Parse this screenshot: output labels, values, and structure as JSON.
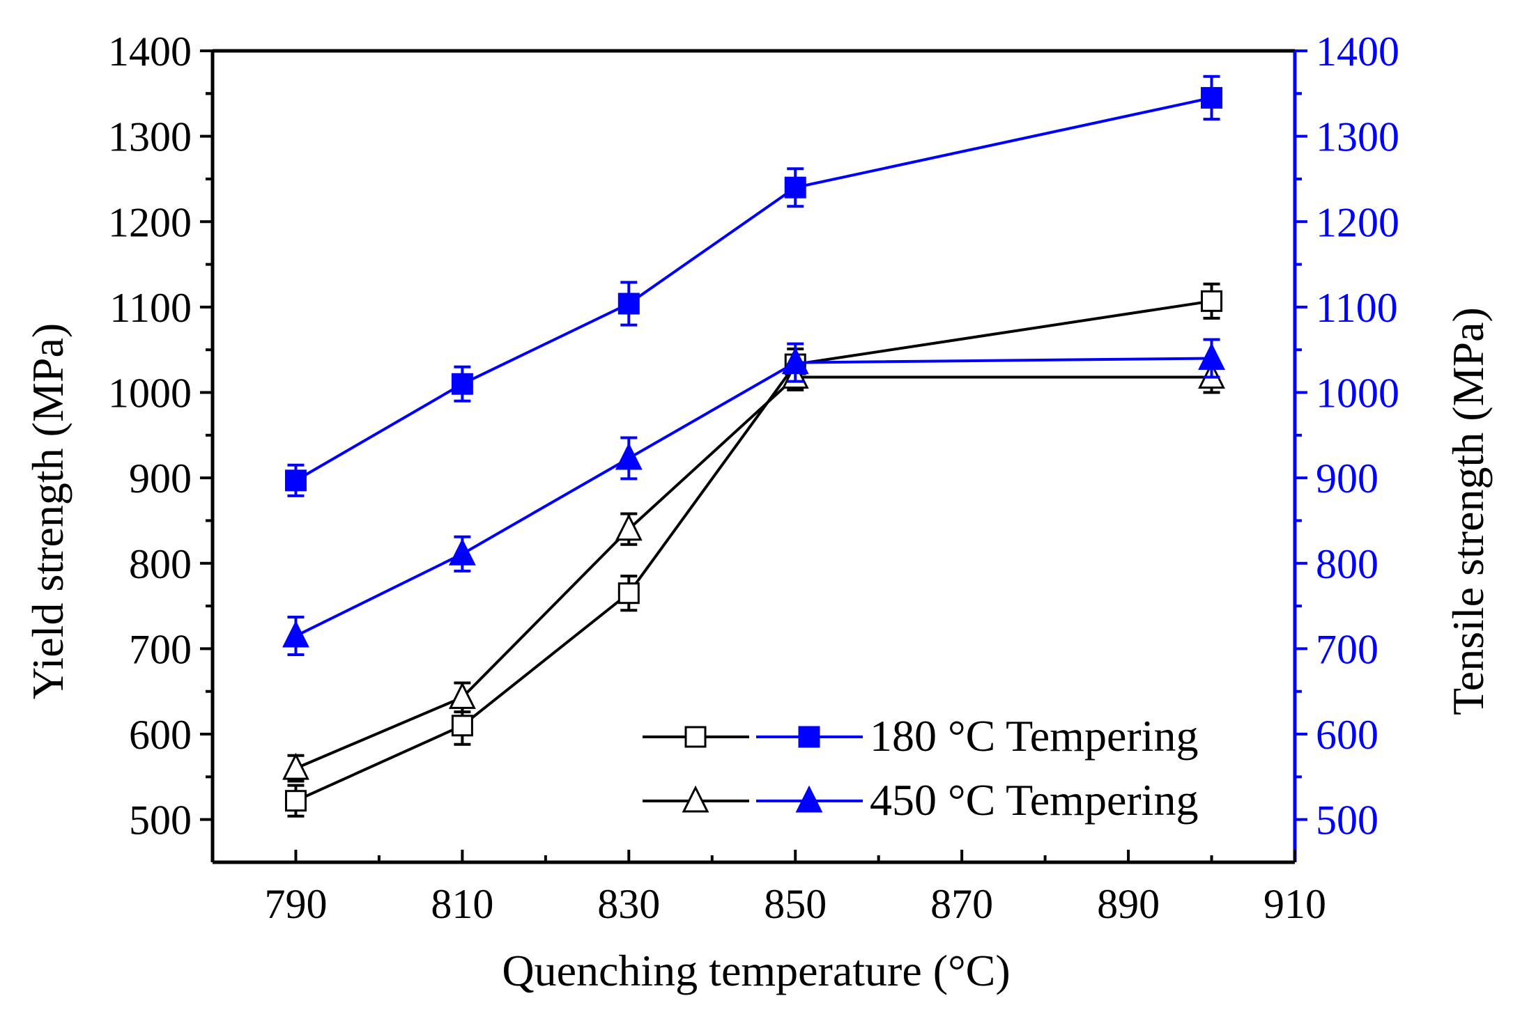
{
  "chart_data": {
    "type": "line",
    "title": "",
    "xlabel": "Quenching temperature (°C)",
    "ylabel_left": "Yield strength (MPa)",
    "ylabel_right": "Tensile strength (MPa)",
    "xlim": [
      780,
      910
    ],
    "ylim": [
      450,
      1400
    ],
    "x_ticks": [
      790,
      810,
      830,
      850,
      870,
      890,
      910
    ],
    "x_tick_labels": [
      "790",
      "810",
      "830",
      "850",
      "870",
      "890",
      "910"
    ],
    "y_ticks": [
      500,
      600,
      700,
      800,
      900,
      1000,
      1100,
      1200,
      1300,
      1400
    ],
    "y_tick_labels": [
      "500",
      "600",
      "700",
      "800",
      "900",
      "1000",
      "1100",
      "1200",
      "1300",
      "1400"
    ],
    "x": [
      790,
      810,
      830,
      850,
      900
    ],
    "series": [
      {
        "name": "Yield strength, 180 °C Tempering",
        "axis": "left",
        "color": "#000000",
        "marker": "square-open",
        "values": [
          522,
          610,
          765,
          1033,
          1107
        ],
        "errors": [
          18,
          22,
          20,
          18,
          20
        ]
      },
      {
        "name": "Yield strength, 450 °C Tempering",
        "axis": "left",
        "color": "#000000",
        "marker": "triangle-open",
        "values": [
          560,
          643,
          840,
          1018,
          1018
        ],
        "errors": [
          15,
          17,
          18,
          15,
          18
        ]
      },
      {
        "name": "Tensile strength, 180 °C Tempering",
        "axis": "right",
        "color": "#0000ff",
        "marker": "square-filled",
        "values": [
          897,
          1010,
          1104,
          1240,
          1345
        ],
        "errors": [
          18,
          20,
          25,
          22,
          25
        ]
      },
      {
        "name": "Tensile strength, 450 °C Tempering",
        "axis": "right",
        "color": "#0000ff",
        "marker": "triangle-filled",
        "values": [
          715,
          811,
          923,
          1035,
          1040
        ],
        "errors": [
          22,
          20,
          24,
          22,
          22
        ]
      }
    ],
    "legend": {
      "placement": "bottom-right",
      "entries": [
        "180 °C Tempering",
        "450 °C Tempering"
      ]
    },
    "colors": {
      "left_axis": "#000000",
      "right_axis": "#0000ff"
    },
    "grid": false
  }
}
